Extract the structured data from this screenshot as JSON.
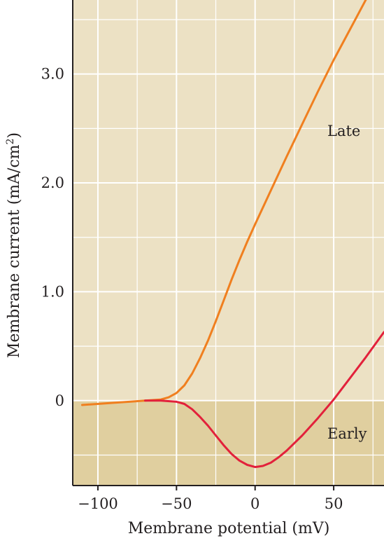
{
  "chart_data": {
    "type": "line",
    "title": "",
    "xlabel": "Membrane potential (mV)",
    "ylabel_main": "Membrane current (mA/cm",
    "ylabel_sup": "2",
    "ylabel_close": ")",
    "xlim": [
      -116,
      82
    ],
    "ylim": [
      -0.78,
      3.68
    ],
    "xticks": [
      -100,
      -50,
      0,
      50
    ],
    "xtick_labels": [
      "−100",
      "−50",
      "0",
      "50"
    ],
    "yticks": [
      0,
      1.0,
      2.0,
      3.0
    ],
    "ytick_labels": [
      "0",
      "1.0",
      "2.0",
      "3.0"
    ],
    "grid": true,
    "colors": {
      "plot_background": "#ece1c4",
      "negative_region": "#e0cf9f",
      "grid": "#ffffff",
      "axis": "#231f20"
    },
    "series": [
      {
        "name": "Late",
        "color": "#f07f1f",
        "x": [
          -110,
          -100,
          -90,
          -80,
          -70,
          -60,
          -55,
          -50,
          -45,
          -40,
          -35,
          -30,
          -25,
          -20,
          -15,
          -10,
          -5,
          0,
          10,
          20,
          30,
          40,
          50,
          60,
          70,
          74
        ],
        "y": [
          -0.04,
          -0.03,
          -0.02,
          -0.01,
          0.0,
          0.01,
          0.03,
          0.07,
          0.14,
          0.25,
          0.39,
          0.55,
          0.73,
          0.92,
          1.11,
          1.29,
          1.46,
          1.62,
          1.93,
          2.24,
          2.54,
          2.84,
          3.13,
          3.4,
          3.67,
          3.78
        ]
      },
      {
        "name": "Early",
        "color": "#e2213b",
        "x": [
          -70,
          -60,
          -50,
          -45,
          -40,
          -35,
          -30,
          -25,
          -20,
          -15,
          -10,
          -5,
          0,
          5,
          10,
          15,
          20,
          30,
          40,
          50,
          60,
          70,
          80,
          82
        ],
        "y": [
          0.0,
          0.0,
          -0.01,
          -0.03,
          -0.08,
          -0.15,
          -0.23,
          -0.32,
          -0.41,
          -0.49,
          -0.55,
          -0.59,
          -0.61,
          -0.6,
          -0.57,
          -0.52,
          -0.46,
          -0.32,
          -0.16,
          0.01,
          0.2,
          0.39,
          0.59,
          0.63
        ]
      }
    ]
  }
}
